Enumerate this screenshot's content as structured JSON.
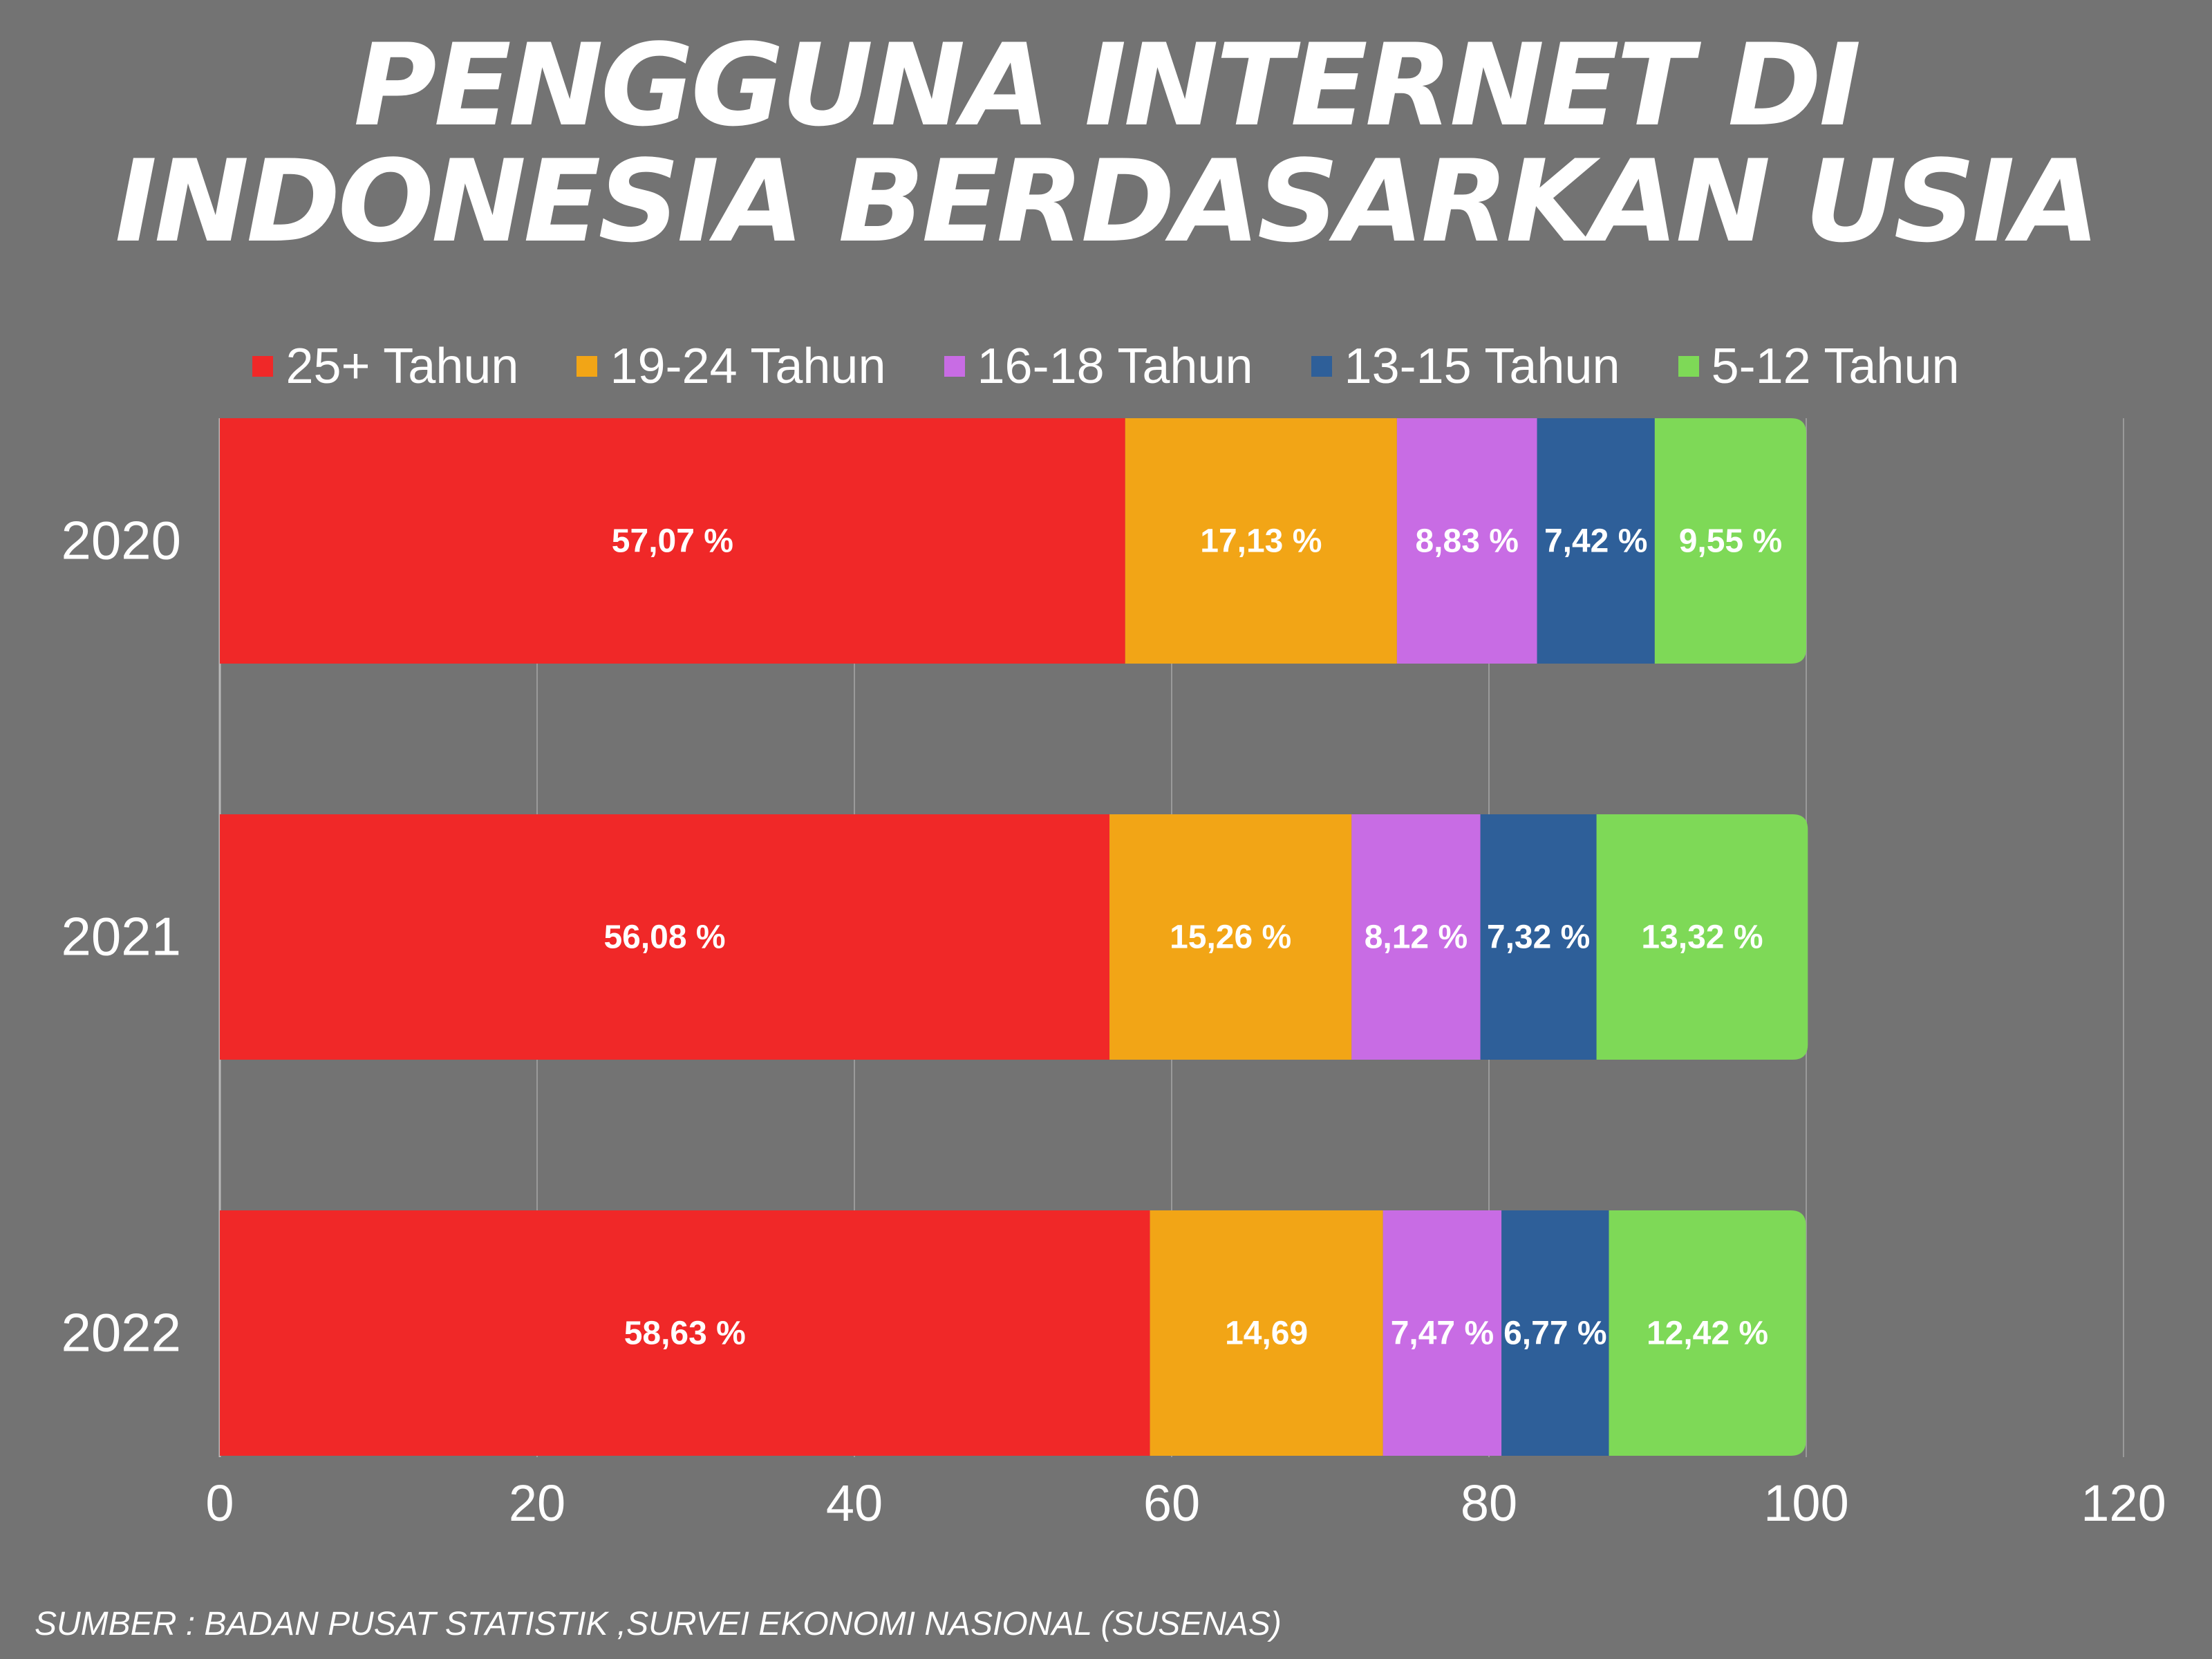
{
  "chart_data": {
    "type": "bar",
    "orientation": "horizontal",
    "stacked": true,
    "title_lines": [
      "PENGGUNA INTERNET DI",
      "INDONESIA BERDASARKAN USIA"
    ],
    "categories": [
      "2020",
      "2021",
      "2022"
    ],
    "series": [
      {
        "name": "25+ Tahun",
        "color": "#f02828",
        "values": [
          57.07,
          56.08,
          58.63
        ],
        "labels": [
          "57,07 %",
          "56,08 %",
          "58,63 %"
        ]
      },
      {
        "name": "19-24 Tahun",
        "color": "#f2a516",
        "values": [
          17.13,
          15.26,
          14.69
        ],
        "labels": [
          "17,13 %",
          "15,26 %",
          "14,69"
        ]
      },
      {
        "name": "16-18 Tahun",
        "color": "#c86ce4",
        "values": [
          8.83,
          8.12,
          7.47
        ],
        "labels": [
          "8,83 %",
          "8,12 %",
          "7,47 %"
        ]
      },
      {
        "name": "13-15 Tahun",
        "color": "#2e5f99",
        "values": [
          7.42,
          7.32,
          6.77
        ],
        "labels": [
          "7,42 %",
          "7,32 %",
          "6,77 %"
        ]
      },
      {
        "name": "5-12 Tahun",
        "color": "#7ed957",
        "values": [
          9.55,
          13.32,
          12.42
        ],
        "labels": [
          "9,55 %",
          "13,32 %",
          "12,42 %"
        ]
      }
    ],
    "x_ticks": [
      "0",
      "20",
      "40",
      "60",
      "80",
      "100",
      "120"
    ],
    "xlim": [
      0,
      120
    ],
    "grid": true,
    "legend_position": "top"
  },
  "source": "SUMBER : BADAN PUSAT STATISTIK ,SURVEI EKONOMI NASIONAL (SUSENAS)"
}
